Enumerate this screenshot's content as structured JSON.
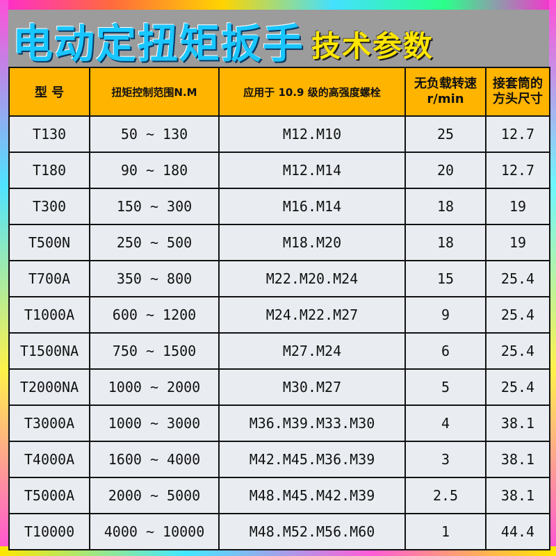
{
  "title": {
    "main": "电动定扭矩扳手",
    "sub": "技术参数"
  },
  "table": {
    "headers": {
      "model": "型  号",
      "torque_range": "扭矩控制范围N.M",
      "bolt": "应用于 10.9 级的高强度螺栓",
      "speed_line1": "无负载转速",
      "speed_line2": "r/min",
      "square_line1": "接套筒的",
      "square_line2": "方头尺寸"
    },
    "rows": [
      {
        "model": "T130",
        "range": "50 ~ 130",
        "bolt": "M12.M10",
        "speed": "25",
        "square": "12.7"
      },
      {
        "model": "T180",
        "range": "90 ~ 180",
        "bolt": "M12.M14",
        "speed": "20",
        "square": "12.7"
      },
      {
        "model": "T300",
        "range": "150 ~ 300",
        "bolt": "M16.M14",
        "speed": "18",
        "square": "19"
      },
      {
        "model": "T500N",
        "range": "250 ~ 500",
        "bolt": "M18.M20",
        "speed": "18",
        "square": "19"
      },
      {
        "model": "T700A",
        "range": "350 ~ 800",
        "bolt": "M22.M20.M24",
        "speed": "15",
        "square": "25.4"
      },
      {
        "model": "T1000A",
        "range": "600 ~ 1200",
        "bolt": "M24.M22.M27",
        "speed": "9",
        "square": "25.4"
      },
      {
        "model": "T1500NA",
        "range": "750 ~ 1500",
        "bolt": "M27.M24",
        "speed": "6",
        "square": "25.4"
      },
      {
        "model": "T2000NA",
        "range": "1000 ~ 2000",
        "bolt": "M30.M27",
        "speed": "5",
        "square": "25.4"
      },
      {
        "model": "T3000A",
        "range": "1000 ~ 3000",
        "bolt": "M36.M39.M33.M30",
        "speed": "4",
        "square": "38.1"
      },
      {
        "model": "T4000A",
        "range": "1600 ~ 4000",
        "bolt": "M42.M45.M36.M39",
        "speed": "3",
        "square": "38.1"
      },
      {
        "model": "T5000A",
        "range": "2000 ~ 5000",
        "bolt": "M48.M45.M42.M39",
        "speed": "2.5",
        "square": "38.1"
      },
      {
        "model": "T10000",
        "range": "4000 ~ 10000",
        "bolt": "M48.M52.M56.M60",
        "speed": "1",
        "square": "44.4"
      }
    ]
  },
  "colors": {
    "header_bg": "#ffb400",
    "cell_bg": "#e9edf1",
    "title_main": "#19c6ff",
    "title_sub": "#ffe600",
    "page_bg": "#9c9c9c"
  }
}
